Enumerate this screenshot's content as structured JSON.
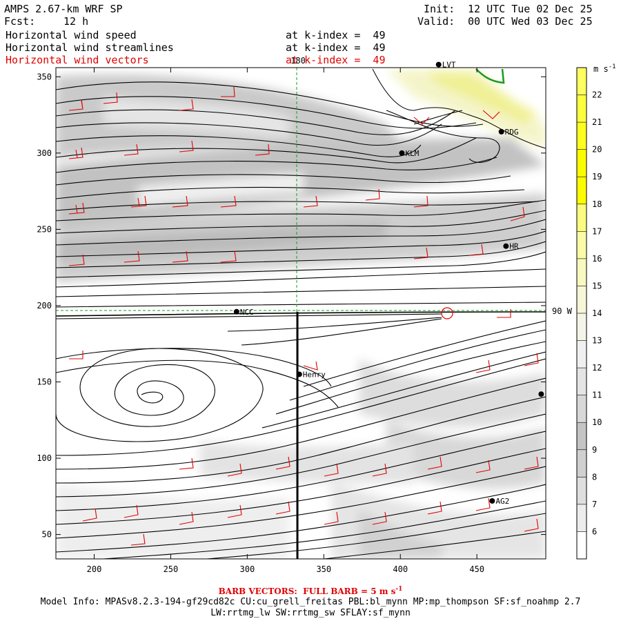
{
  "header": {
    "model": "AMPS 2.67-km WRF SP",
    "fcst_label": "Fcst:",
    "fcst_value": "12 h",
    "init_label": "Init:",
    "init_value": "12 UTC Tue 02 Dec 25",
    "valid_label": "Valid:",
    "valid_value": "00 UTC Wed 03 Dec 25",
    "fields": [
      {
        "name": "Horizontal wind speed",
        "level": "at k-index =  49",
        "color": "#000000"
      },
      {
        "name": "Horizontal wind streamlines",
        "level": "at k-index =  49",
        "color": "#000000"
      },
      {
        "name": "Horizontal wind vectors",
        "level": "at k-index =  49",
        "color": "#e00000"
      }
    ]
  },
  "map_labels": {
    "meridian": "180",
    "parallel": "90 W"
  },
  "stations": [
    {
      "name": "LVT",
      "x": 425,
      "y": 358
    },
    {
      "name": "RDG",
      "x": 466,
      "y": 314
    },
    {
      "name": "KLM",
      "x": 401,
      "y": 300
    },
    {
      "name": "HR",
      "x": 469,
      "y": 239
    },
    {
      "name": "NCC",
      "x": 293,
      "y": 196
    },
    {
      "name": "Henry",
      "x": 334,
      "y": 155
    },
    {
      "name": "",
      "x": 492,
      "y": 142
    },
    {
      "name": "AG2",
      "x": 460,
      "y": 72
    }
  ],
  "colorbar": {
    "unit": "m s",
    "unit_sup": "-1",
    "levels": [
      6,
      7,
      8,
      9,
      10,
      11,
      12,
      13,
      14,
      15,
      16,
      17,
      18,
      19,
      20,
      21,
      22
    ],
    "colors": [
      "#ffffff",
      "#ececec",
      "#dedede",
      "#d0d0d0",
      "#c4c4c4",
      "#d8d8d8",
      "#e4e4e4",
      "#f0f0f0",
      "#f4f4e8",
      "#f6f6d8",
      "#f8f8c0",
      "#fafaa8",
      "#fbfb80",
      "#fcfc00",
      "#fcfc00",
      "#fdfd20",
      "#fdfd40",
      "#fefe60"
    ]
  },
  "chart_data": {
    "type": "heatmap",
    "title": "Horizontal wind speed / streamlines / vectors at k-index = 49",
    "xlabel": "",
    "ylabel": "",
    "xlim": [
      175,
      495
    ],
    "ylim": [
      34,
      356
    ],
    "xticks": [
      200,
      250,
      300,
      350,
      400,
      450
    ],
    "yticks": [
      50,
      100,
      150,
      200,
      250,
      300,
      350
    ],
    "cross_section_line": {
      "x": 333,
      "y_from": 34,
      "y_to": 195
    },
    "vortex_center": {
      "x": 232,
      "y": 140
    },
    "grid_lines": {
      "meridian_180_x": 333,
      "parallel_90W_y": 195
    },
    "colorbar_unit": "m s-1"
  },
  "footer": {
    "barb_note": "BARB VECTORS:  FULL BARB = 5 m s",
    "barb_sup": "-1",
    "model_info": "Model Info: MPASv8.2.3-194-gf29cd82c CU:cu_grell_freitas PBL:bl_mynn MP:mp_thompson SF:sf_noahmp 2.7",
    "model_info2": "LW:rrtmg_lw SW:rrtmg_sw SFLAY:sf_mynn"
  }
}
